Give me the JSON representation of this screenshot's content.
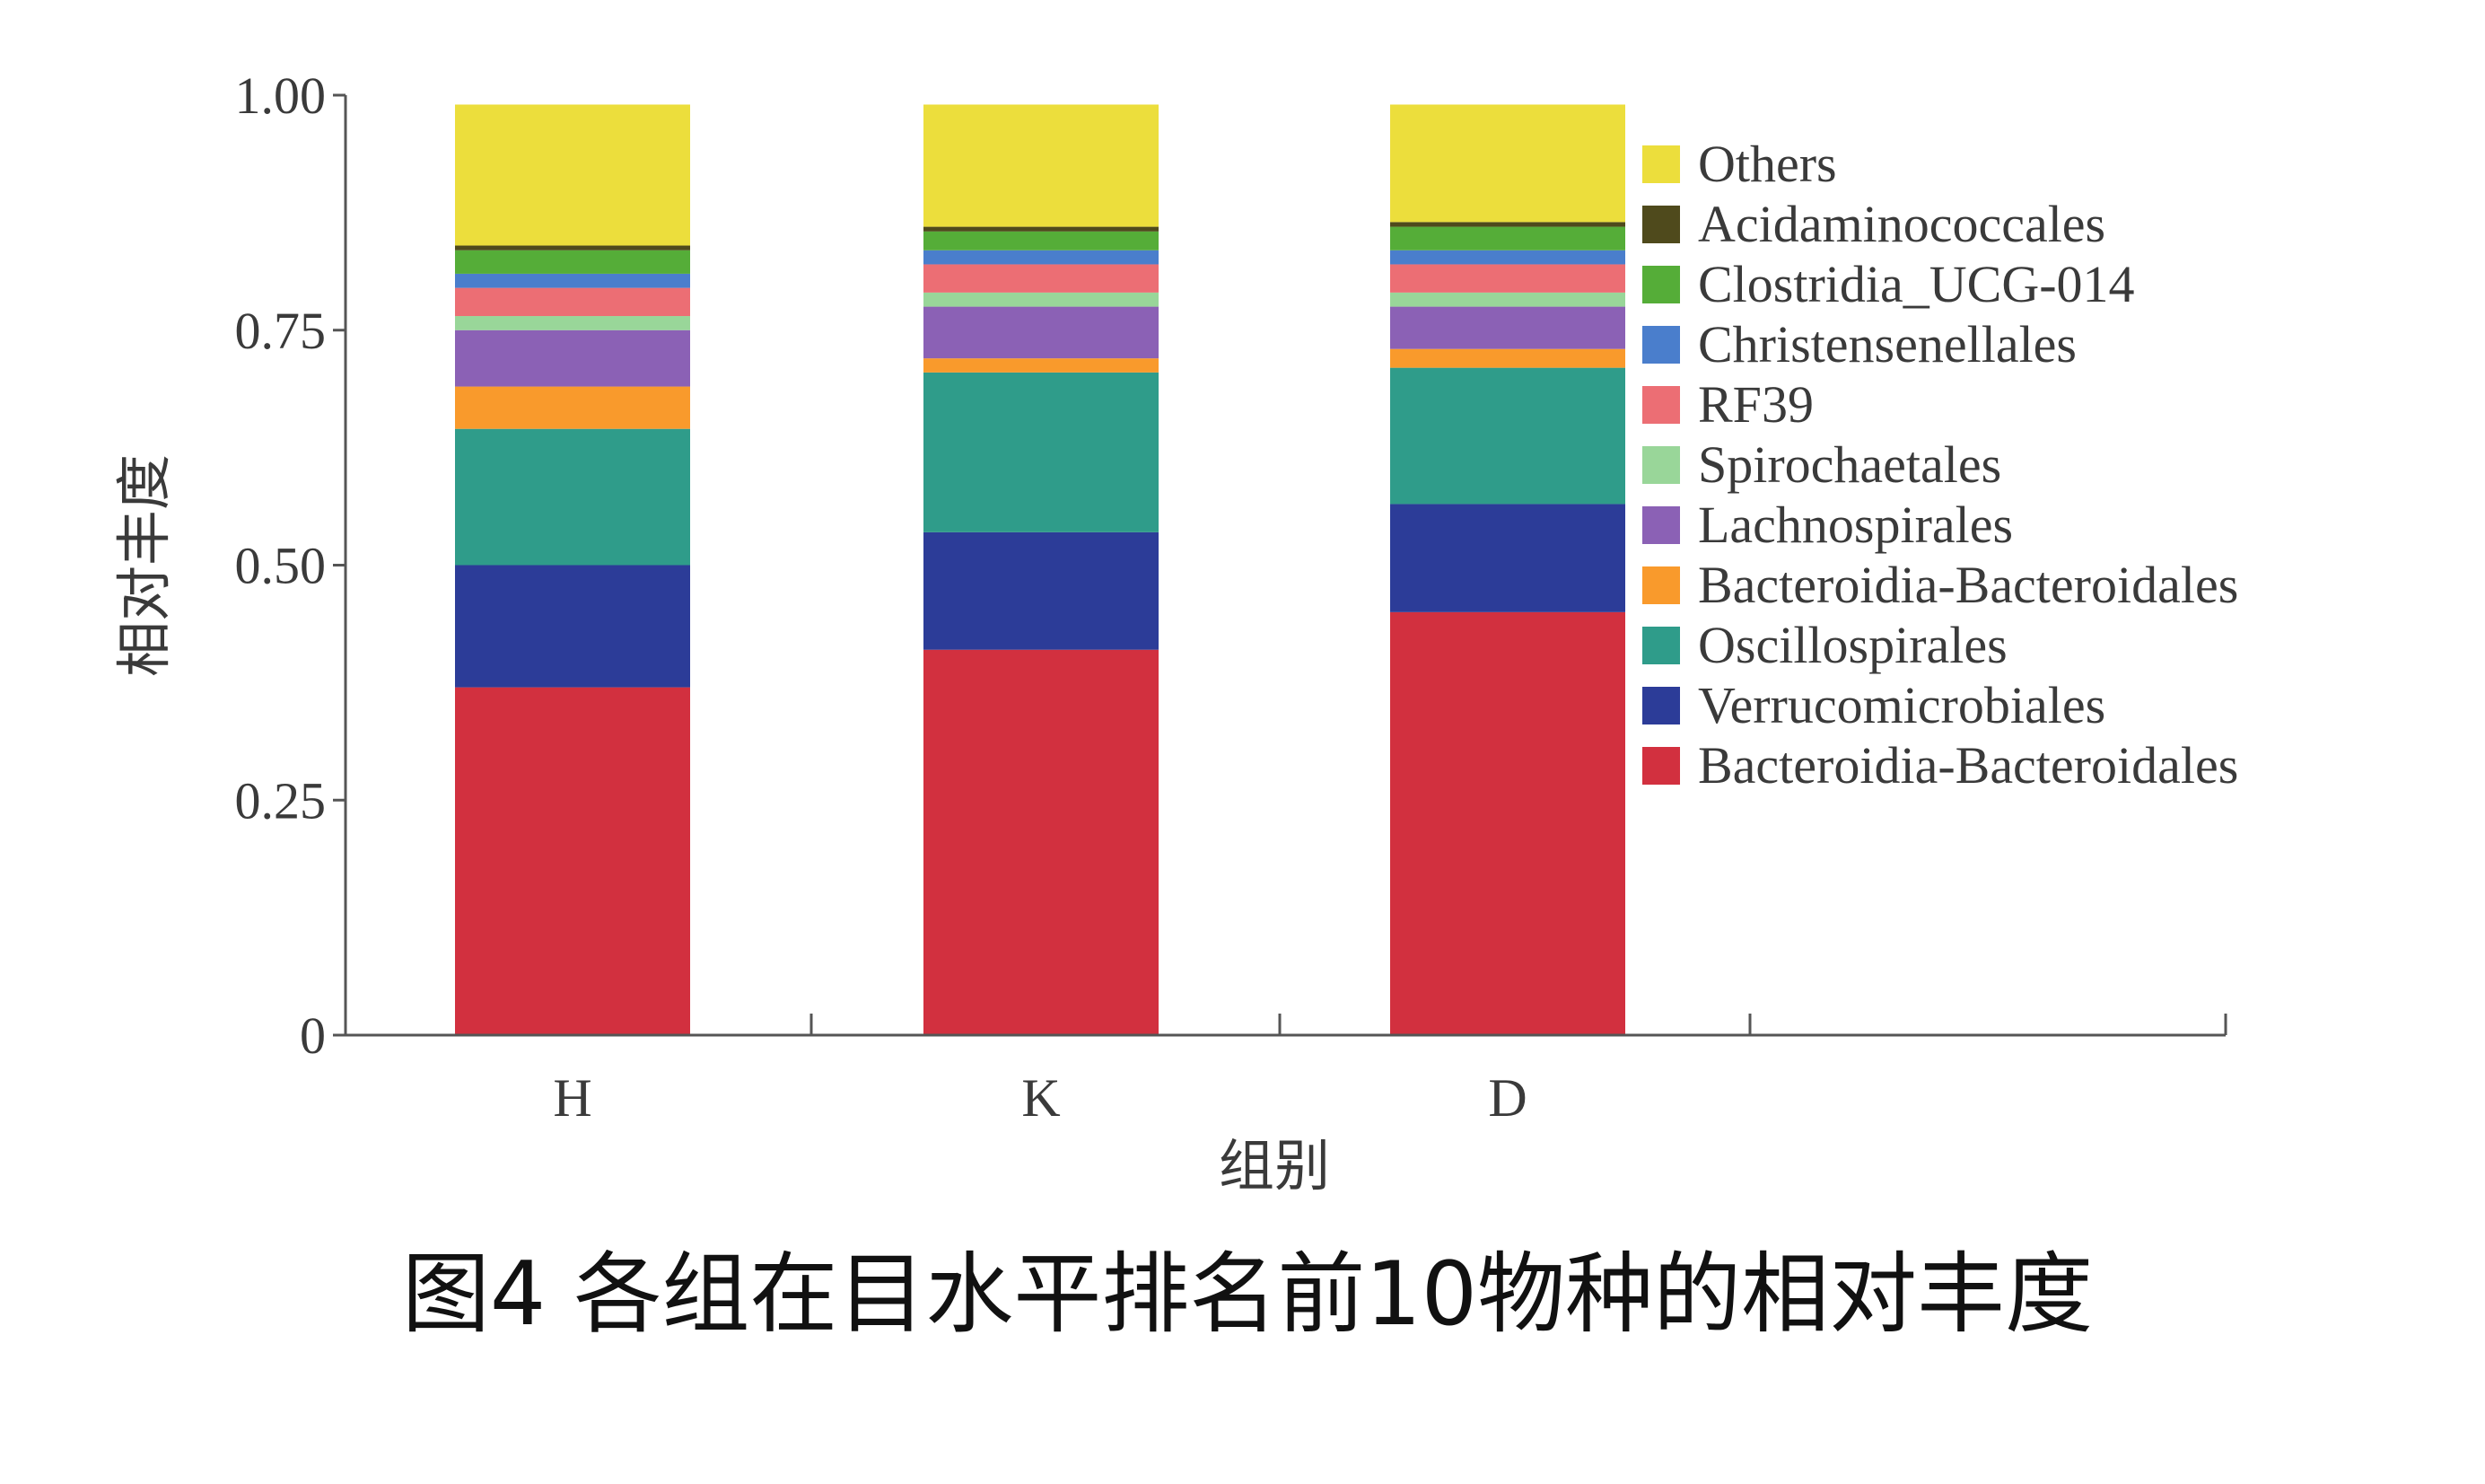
{
  "chart_data": {
    "type": "bar",
    "stacked": true,
    "caption": "图4 各组在目水平排名前10物种的相对丰度",
    "xlabel": "组别",
    "ylabel": "相对丰度",
    "ylim": [
      0,
      1
    ],
    "yticks": [
      "0",
      "0.25",
      "0.50",
      "0.75",
      "1.00"
    ],
    "ytick_values": [
      0,
      0.25,
      0.5,
      0.75,
      1.0
    ],
    "categories": [
      "H",
      "K",
      "D"
    ],
    "legend_position": "right",
    "series": [
      {
        "name": "Bacteroidia-Bacteroidales",
        "color": "#d2303f",
        "values": [
          0.37,
          0.41,
          0.45
        ]
      },
      {
        "name": "Verrucomicrobiales",
        "color": "#2c3c98",
        "values": [
          0.13,
          0.125,
          0.115
        ]
      },
      {
        "name": "Oscillospirales",
        "color": "#2f9c8a",
        "values": [
          0.145,
          0.17,
          0.145
        ]
      },
      {
        "name": "Bacteroidia-Bacteroidales",
        "color": "#f99a2c",
        "values": [
          0.045,
          0.015,
          0.02
        ]
      },
      {
        "name": "Lachnospirales",
        "color": "#8b61b5",
        "values": [
          0.06,
          0.055,
          0.045
        ]
      },
      {
        "name": "Spirochaetales",
        "color": "#99d699",
        "values": [
          0.015,
          0.015,
          0.015
        ]
      },
      {
        "name": "RF39",
        "color": "#ec6e74",
        "values": [
          0.03,
          0.03,
          0.03
        ]
      },
      {
        "name": "Christensenellales",
        "color": "#4a7ecc",
        "values": [
          0.015,
          0.015,
          0.015
        ]
      },
      {
        "name": "Clostridia_UCG-014",
        "color": "#55ad38",
        "values": [
          0.025,
          0.02,
          0.025
        ]
      },
      {
        "name": "Acidaminococcales",
        "color": "#4f4a1c",
        "values": [
          0.005,
          0.005,
          0.005
        ]
      },
      {
        "name": "Others",
        "color": "#ecde3c",
        "values": [
          0.15,
          0.13,
          0.125
        ]
      }
    ],
    "legend_order": [
      10,
      9,
      8,
      7,
      6,
      5,
      4,
      3,
      2,
      1,
      0
    ]
  }
}
